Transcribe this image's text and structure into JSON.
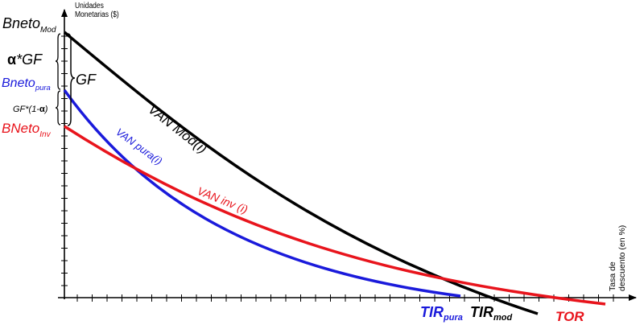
{
  "axes": {
    "y_label_line1": "Unidades",
    "y_label_line2": "Monetarias ($)",
    "x_label_line1": "Tasa de",
    "x_label_line2": "descuento (en %)"
  },
  "left_labels": {
    "bneto_mod_main": "Bneto",
    "bneto_mod_sub": "Mod",
    "alpha_gf_symbol": "α",
    "alpha_gf_text": "*GF",
    "gf": "GF",
    "bneto_pura_main": "Bneto",
    "bneto_pura_sub": "pura",
    "gf_one_minus_alpha_text": "GF*(1-",
    "gf_one_minus_alpha_symbol": "α",
    "gf_one_minus_alpha_close": ")",
    "bneto_inv_main": "BNeto",
    "bneto_inv_sub": "Inv"
  },
  "curves": {
    "van_mod": "VAN Mod(i)",
    "van_pura": "VAN pura(i)",
    "van_inv": "VAN inv (i)"
  },
  "roots": {
    "tir_pura_main": "TIR",
    "tir_pura_sub": "pura",
    "tir_mod_main": "TIR",
    "tir_mod_sub": "mod",
    "tor": "TOR"
  },
  "colors": {
    "mod": "#000000",
    "pura": "#1a1adb",
    "inv": "#e8141c",
    "axis": "#000000"
  }
}
